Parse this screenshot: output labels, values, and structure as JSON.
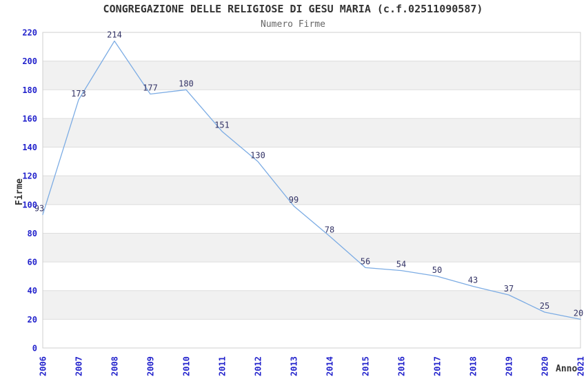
{
  "chart_data": {
    "type": "line",
    "title": "CONGREGAZIONE DELLE RELIGIOSE DI GESU MARIA (c.f.02511090587)",
    "subtitle": "Numero Firme",
    "xlabel": "Anno",
    "ylabel": "Firme",
    "categories": [
      "2006",
      "2007",
      "2008",
      "2009",
      "2010",
      "2011",
      "2012",
      "2013",
      "2014",
      "2015",
      "2016",
      "2017",
      "2018",
      "2019",
      "2020",
      "2021"
    ],
    "series": [
      {
        "name": "Numero Firme",
        "values": [
          93,
          173,
          214,
          177,
          180,
          151,
          130,
          99,
          78,
          56,
          54,
          50,
          43,
          37,
          25,
          20
        ]
      }
    ],
    "ylim": [
      0,
      220
    ],
    "ytick_step": 20,
    "grid": true,
    "legend": "none",
    "point_labels": true,
    "colors": {
      "line": "#7CACE4",
      "tick_label": "#2222CC",
      "point_label": "#333366",
      "band": "#F1F1F1",
      "gridline": "#DDDDDD",
      "frame": "#CFCFCF",
      "title": "#333333",
      "subtitle": "#666666",
      "axis_label": "#333333",
      "background": "#FFFFFF"
    }
  }
}
